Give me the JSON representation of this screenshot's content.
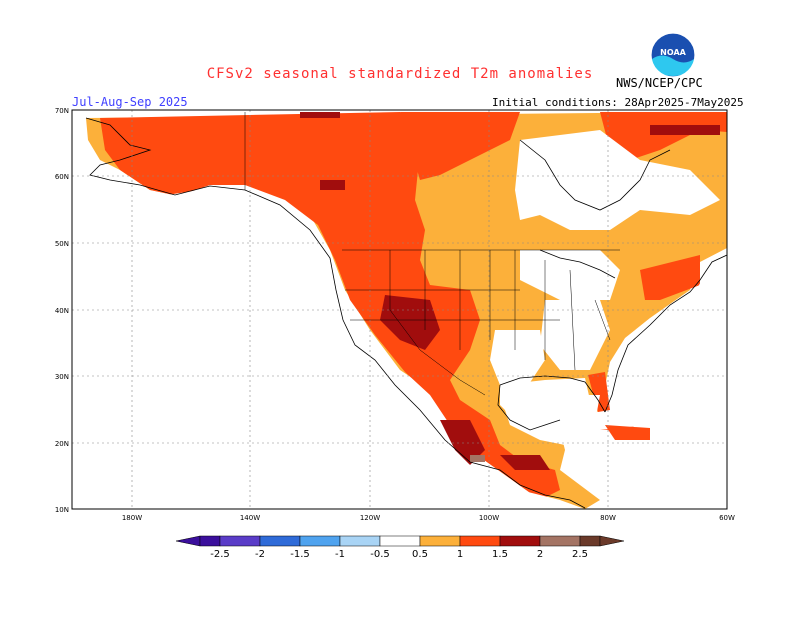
{
  "header": {
    "title": "CFSv2 seasonal standardized T2m anomalies",
    "agency": "NWS/NCEP/CPC",
    "period": "Jul-Aug-Sep 2025",
    "initial_conditions": "Initial conditions: 28Apr2025-7May2025",
    "logo_text": "NOAA"
  },
  "map": {
    "lat_labels": [
      "70N",
      "60N",
      "50N",
      "40N",
      "30N",
      "20N",
      "10N"
    ],
    "lon_labels": [
      "180W",
      "140W",
      "120W",
      "100W",
      "80W",
      "60W"
    ],
    "lat_range": [
      10,
      70
    ],
    "lon_range": [
      -190,
      -60
    ],
    "land_color": "#ffffff",
    "ocean_color": "#ffffff"
  },
  "colorbar": {
    "labels": [
      "-2.5",
      "-2",
      "-1.5",
      "-1",
      "-0.5",
      "0.5",
      "1",
      "1.5",
      "2",
      "2.5"
    ],
    "colors": [
      "#3b0f9c",
      "#5a3cc8",
      "#2f6bd8",
      "#4fa3ef",
      "#a9d4f5",
      "#ffffff",
      "#fcb03a",
      "#ff4a10",
      "#a10d0d",
      "#a47464",
      "#6b3a2a"
    ]
  },
  "legend_colors": {
    "white": "#ffffff",
    "light_orange": "#fcb03a",
    "red_orange": "#ff4a10",
    "dark_red": "#a10d0d",
    "brown": "#a47464"
  }
}
